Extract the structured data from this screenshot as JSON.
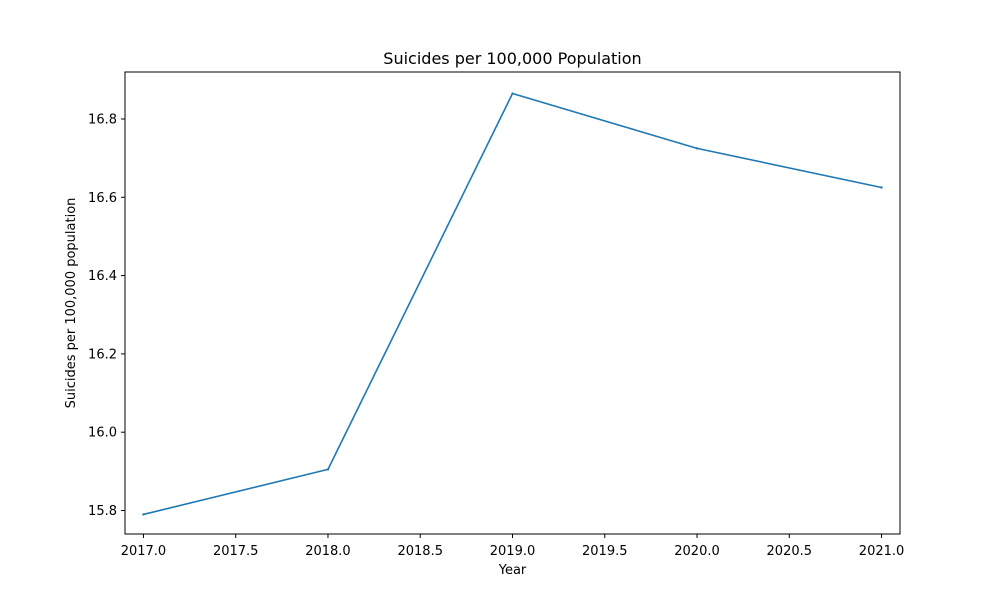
{
  "chart_data": {
    "type": "line",
    "title": "Suicides per 100,000 Population",
    "xlabel": "Year",
    "ylabel": "Suicides per 100,000 population",
    "xlim": [
      2016.9,
      2021.1
    ],
    "ylim": [
      15.74,
      16.92
    ],
    "x_ticks": [
      2017.0,
      2017.5,
      2018.0,
      2018.5,
      2019.0,
      2019.5,
      2020.0,
      2020.5,
      2021.0
    ],
    "x_tick_labels": [
      "2017.0",
      "2017.5",
      "2018.0",
      "2018.5",
      "2019.0",
      "2019.5",
      "2020.0",
      "2020.5",
      "2021.0"
    ],
    "y_ticks": [
      15.8,
      16.0,
      16.2,
      16.4,
      16.6,
      16.8
    ],
    "y_tick_labels": [
      "15.8",
      "16.0",
      "16.2",
      "16.4",
      "16.6",
      "16.8"
    ],
    "grid": false,
    "legend": "none",
    "series": [
      {
        "color": "#1f77b4",
        "x": [
          2017,
          2018,
          2019,
          2020,
          2021
        ],
        "y": [
          15.79,
          15.905,
          16.865,
          16.725,
          16.625
        ]
      }
    ]
  }
}
